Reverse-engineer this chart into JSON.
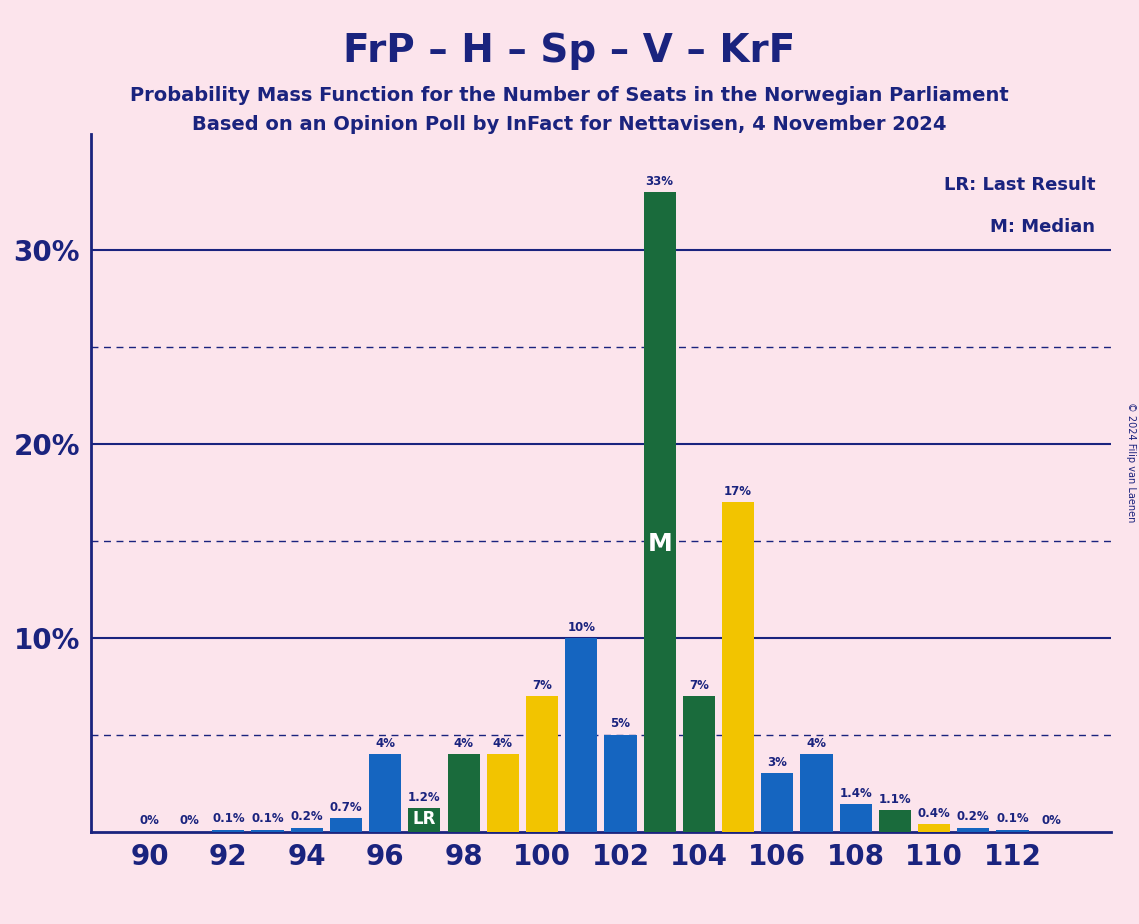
{
  "title": "FrP – H – Sp – V – KrF",
  "subtitle1": "Probability Mass Function for the Number of Seats in the Norwegian Parliament",
  "subtitle2": "Based on an Opinion Poll by InFact for Nettavisen, 4 November 2024",
  "copyright": "© 2024 Filip van Laenen",
  "legend_lr": "LR: Last Result",
  "legend_m": "M: Median",
  "background_color": "#fce4ec",
  "bar_data": [
    {
      "seat": 90,
      "pct": 0.0,
      "color": "#1565c0"
    },
    {
      "seat": 91,
      "pct": 0.0,
      "color": "#f2c400"
    },
    {
      "seat": 92,
      "pct": 0.1,
      "color": "#1565c0"
    },
    {
      "seat": 93,
      "pct": 0.1,
      "color": "#1565c0"
    },
    {
      "seat": 94,
      "pct": 0.2,
      "color": "#1565c0"
    },
    {
      "seat": 95,
      "pct": 0.7,
      "color": "#1565c0"
    },
    {
      "seat": 96,
      "pct": 4.0,
      "color": "#1565c0"
    },
    {
      "seat": 97,
      "pct": 1.2,
      "color": "#1a6b3c",
      "special": "LR"
    },
    {
      "seat": 98,
      "pct": 4.0,
      "color": "#1a6b3c"
    },
    {
      "seat": 99,
      "pct": 4.0,
      "color": "#f2c400"
    },
    {
      "seat": 100,
      "pct": 7.0,
      "color": "#f2c400"
    },
    {
      "seat": 101,
      "pct": 10.0,
      "color": "#1565c0"
    },
    {
      "seat": 102,
      "pct": 5.0,
      "color": "#1565c0"
    },
    {
      "seat": 103,
      "pct": 33.0,
      "color": "#1a6b3c",
      "special": "M"
    },
    {
      "seat": 104,
      "pct": 7.0,
      "color": "#1a6b3c"
    },
    {
      "seat": 105,
      "pct": 17.0,
      "color": "#f2c400"
    },
    {
      "seat": 106,
      "pct": 3.0,
      "color": "#1565c0"
    },
    {
      "seat": 107,
      "pct": 4.0,
      "color": "#1565c0"
    },
    {
      "seat": 108,
      "pct": 1.4,
      "color": "#1565c0"
    },
    {
      "seat": 109,
      "pct": 1.1,
      "color": "#1a6b3c"
    },
    {
      "seat": 110,
      "pct": 0.4,
      "color": "#f2c400"
    },
    {
      "seat": 111,
      "pct": 0.2,
      "color": "#1565c0"
    },
    {
      "seat": 112,
      "pct": 0.1,
      "color": "#1565c0"
    },
    {
      "seat": 113,
      "pct": 0.0,
      "color": "#1565c0"
    }
  ],
  "major_yticks": [
    10,
    20,
    30
  ],
  "major_ytick_labels": [
    "10%",
    "20%",
    "30%"
  ],
  "dotted_yticks": [
    5,
    15,
    25
  ],
  "ylim_max": 36,
  "xlim_min": 88.5,
  "xlim_max": 114.5,
  "xtick_values": [
    90,
    92,
    94,
    96,
    98,
    100,
    102,
    104,
    106,
    108,
    110,
    112
  ]
}
